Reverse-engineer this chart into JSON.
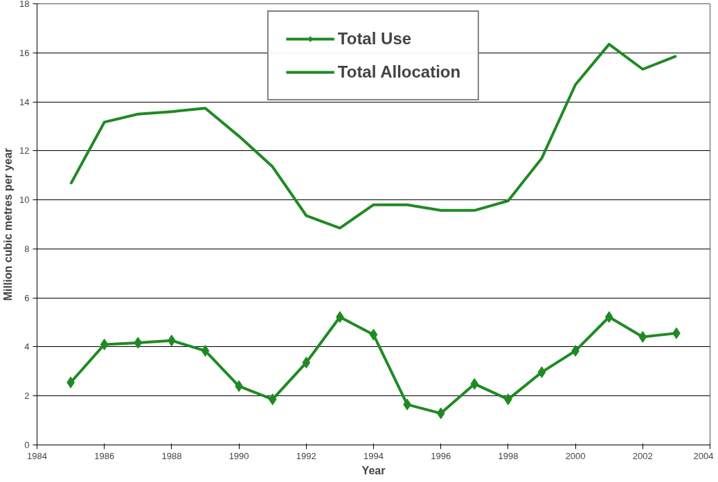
{
  "chart_data": {
    "type": "line",
    "xlabel": "Year",
    "ylabel": "Million cubic metres per year",
    "x": [
      1985,
      1986,
      1987,
      1988,
      1989,
      1990,
      1991,
      1992,
      1993,
      1994,
      1995,
      1996,
      1997,
      1998,
      1999,
      2000,
      2001,
      2002,
      2003
    ],
    "series": [
      {
        "name": "Total Use",
        "color": "#1f8a24",
        "marker": "diamond",
        "values": [
          2.55,
          4.1,
          4.17,
          4.26,
          3.84,
          2.4,
          1.86,
          3.36,
          5.22,
          4.5,
          1.65,
          1.29,
          2.49,
          1.86,
          2.97,
          3.84,
          5.22,
          4.41,
          4.56
        ]
      },
      {
        "name": "Total Allocation",
        "color": "#1f8a24",
        "marker": "none",
        "values": [
          10.65,
          13.17,
          13.5,
          13.6,
          13.74,
          12.6,
          11.35,
          9.36,
          8.85,
          9.8,
          9.8,
          9.57,
          9.57,
          9.96,
          11.7,
          14.7,
          16.35,
          15.33,
          15.87
        ]
      }
    ],
    "xlim": [
      1984,
      2004
    ],
    "xticks": [
      1984,
      1986,
      1988,
      1990,
      1992,
      1994,
      1996,
      1998,
      2000,
      2002,
      2004
    ],
    "ylim": [
      0,
      18
    ],
    "yticks": [
      0,
      2,
      4,
      6,
      8,
      10,
      12,
      14,
      16,
      18
    ],
    "grid": "y",
    "legend": "top",
    "line_style": "solid"
  }
}
